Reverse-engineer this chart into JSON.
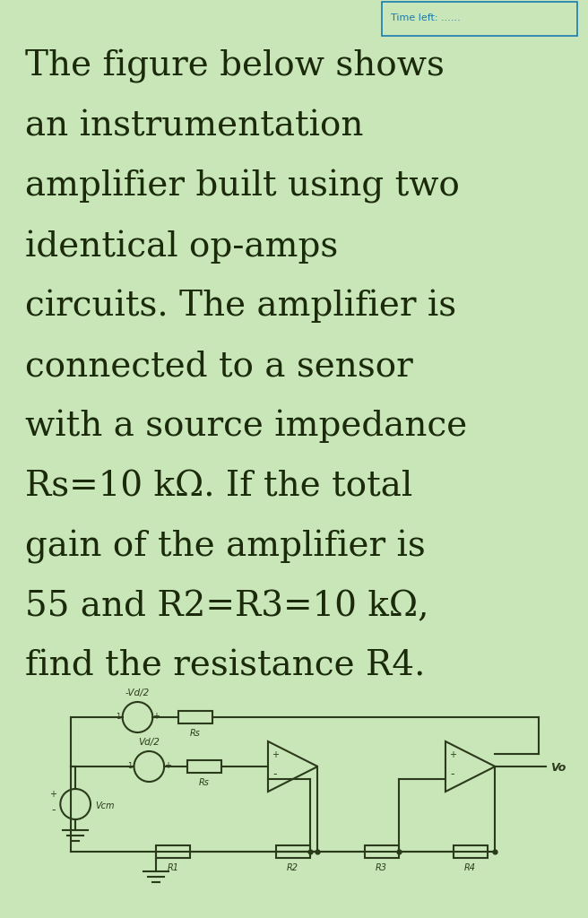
{
  "background_color": "#c8e6b8",
  "text_color": "#1a2a0a",
  "title_lines": [
    "The figure below shows",
    "an instrumentation",
    "amplifier built using two",
    "identical op-amps",
    "circuits. The amplifier is",
    "connected to a sensor",
    "with a source impedance",
    "Rs=10 kΩ. If the total",
    "gain of the amplifier is",
    "55 and R2=R3=10 kΩ,",
    "find the resistance R4."
  ],
  "top_source_label": "-Vd/2",
  "bottom_source_label": "Vd/2",
  "vcm_label": "Vcm",
  "rs_label": "Rs",
  "resistor_labels": [
    "R1",
    "R2",
    "R3",
    "R4"
  ],
  "vo_label": "Vo",
  "font_size_title": 28,
  "font_size_circuit": 8,
  "line_color": "#2a3a1a",
  "box_color": "#1a7ab0"
}
